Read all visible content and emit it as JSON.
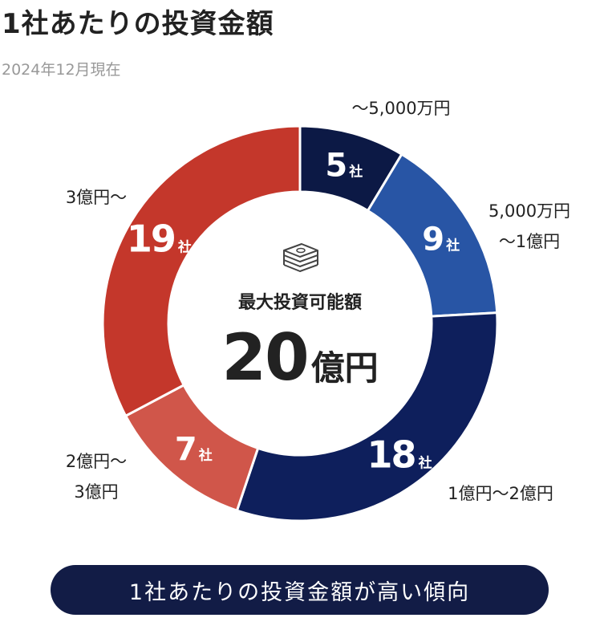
{
  "title": "1社あたりの投資金額",
  "subtitle": "2024年12月現在",
  "center": {
    "label": "最大投資可能額",
    "value": "20",
    "unit": "億円"
  },
  "unit_suffix": "社",
  "colors": {
    "navy_dark": "#0c1945",
    "blue": "#2855a5",
    "navy": "#0e1f5c",
    "red_light": "#d0564a",
    "red": "#c4372b"
  },
  "chart_data": {
    "type": "pie",
    "title": "1社あたりの投資金額",
    "categories": [
      [
        "～5,000万円"
      ],
      [
        "5,000万円",
        "～1億円"
      ],
      [
        "1億円～2億円"
      ],
      [
        "2億円～",
        "3億円"
      ],
      [
        "3億円～"
      ]
    ],
    "values": [
      5,
      9,
      18,
      7,
      19
    ],
    "colors": [
      "#0c1945",
      "#2855a5",
      "#0e1f5c",
      "#d0564a",
      "#c4372b"
    ],
    "legend": "none"
  },
  "button": {
    "label": "1社あたりの投資金額が高い傾向"
  }
}
